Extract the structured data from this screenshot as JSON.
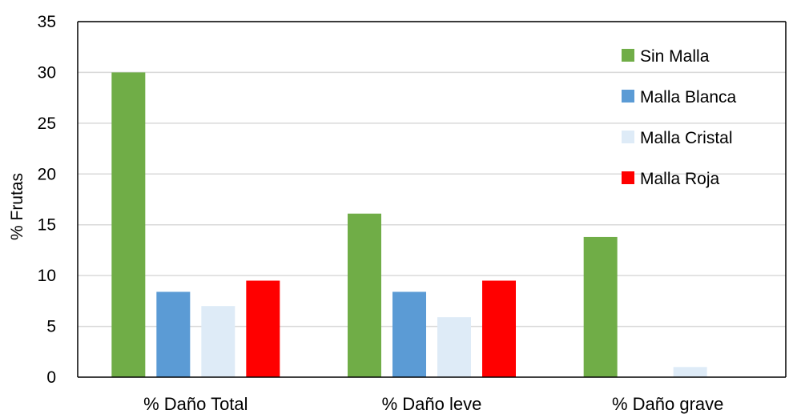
{
  "chart_data": {
    "type": "bar",
    "title": "",
    "xlabel": "",
    "ylabel": "% Frutas",
    "ylim": [
      0,
      35
    ],
    "yticks": [
      0,
      5,
      10,
      15,
      20,
      25,
      30,
      35
    ],
    "grid": true,
    "legend_position": "top-right",
    "categories": [
      "% Daño Total",
      "% Daño leve",
      "% Daño grave"
    ],
    "series": [
      {
        "name": "Sin Malla",
        "color": "#70AD47",
        "values": [
          30,
          16.1,
          13.8
        ]
      },
      {
        "name": "Malla Blanca",
        "color": "#5B9BD5",
        "values": [
          8.4,
          8.4,
          0
        ]
      },
      {
        "name": "Malla Cristal",
        "color": "#DEEBF7",
        "values": [
          7.0,
          5.9,
          1.0
        ]
      },
      {
        "name": "Malla Roja",
        "color": "#FF0000",
        "values": [
          9.5,
          9.5,
          0
        ]
      }
    ]
  }
}
